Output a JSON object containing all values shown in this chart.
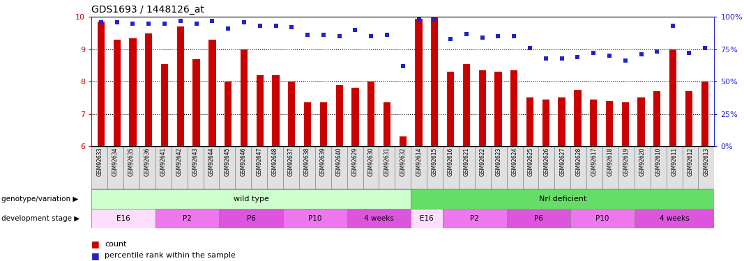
{
  "title": "GDS1693 / 1448126_at",
  "samples": [
    "GSM92633",
    "GSM92634",
    "GSM92635",
    "GSM92636",
    "GSM92641",
    "GSM92642",
    "GSM92643",
    "GSM92644",
    "GSM92645",
    "GSM92646",
    "GSM92647",
    "GSM92648",
    "GSM92637",
    "GSM92638",
    "GSM92639",
    "GSM92640",
    "GSM92629",
    "GSM92630",
    "GSM92631",
    "GSM92632",
    "GSM92614",
    "GSM92615",
    "GSM92616",
    "GSM92621",
    "GSM92622",
    "GSM92623",
    "GSM92624",
    "GSM92625",
    "GSM92626",
    "GSM92627",
    "GSM92628",
    "GSM92617",
    "GSM92618",
    "GSM92619",
    "GSM92620",
    "GSM92610",
    "GSM92611",
    "GSM92612",
    "GSM92613"
  ],
  "counts": [
    9.85,
    9.3,
    9.35,
    9.5,
    8.55,
    9.7,
    8.7,
    9.3,
    8.0,
    9.0,
    8.2,
    8.2,
    8.0,
    7.35,
    7.35,
    7.9,
    7.8,
    8.0,
    7.35,
    6.3,
    9.95,
    10.05,
    8.3,
    8.55,
    8.35,
    8.3,
    8.35,
    7.5,
    7.45,
    7.5,
    7.75,
    7.45,
    7.4,
    7.35,
    7.5,
    7.7,
    9.0,
    7.7,
    8.0
  ],
  "percentiles": [
    96,
    96,
    95,
    95,
    95,
    97,
    95,
    97,
    91,
    96,
    93,
    93,
    92,
    86,
    86,
    85,
    90,
    85,
    86,
    62,
    98,
    98,
    83,
    87,
    84,
    85,
    85,
    76,
    68,
    68,
    69,
    72,
    70,
    66,
    71,
    73,
    93,
    72,
    76
  ],
  "bar_color": "#cc0000",
  "dot_color": "#2222cc",
  "ylim_left": [
    6,
    10
  ],
  "ylim_right": [
    0,
    100
  ],
  "yticks_left": [
    6,
    7,
    8,
    9,
    10
  ],
  "yticks_right": [
    0,
    25,
    50,
    75,
    100
  ],
  "yticklabels_right": [
    "0%",
    "25%",
    "50%",
    "75%",
    "100%"
  ],
  "genotype_groups": [
    {
      "label": "wild type",
      "start": 0,
      "end": 20,
      "color": "#ccffcc"
    },
    {
      "label": "Nrl deficient",
      "start": 20,
      "end": 39,
      "color": "#66dd66"
    }
  ],
  "stage_groups": [
    {
      "label": "E16",
      "start": 0,
      "end": 4,
      "color": "#ffddff"
    },
    {
      "label": "P2",
      "start": 4,
      "end": 8,
      "color": "#ee77ee"
    },
    {
      "label": "P6",
      "start": 8,
      "end": 12,
      "color": "#dd55dd"
    },
    {
      "label": "P10",
      "start": 12,
      "end": 16,
      "color": "#ee77ee"
    },
    {
      "label": "4 weeks",
      "start": 16,
      "end": 20,
      "color": "#dd55dd"
    },
    {
      "label": "E16",
      "start": 20,
      "end": 22,
      "color": "#ffddff"
    },
    {
      "label": "P2",
      "start": 22,
      "end": 26,
      "color": "#ee77ee"
    },
    {
      "label": "P6",
      "start": 26,
      "end": 30,
      "color": "#dd55dd"
    },
    {
      "label": "P10",
      "start": 30,
      "end": 34,
      "color": "#ee77ee"
    },
    {
      "label": "4 weeks",
      "start": 34,
      "end": 39,
      "color": "#dd55dd"
    }
  ],
  "row_label_genotype": "genotype/variation",
  "row_label_stage": "development stage",
  "legend_count": "count",
  "legend_pct": "percentile rank within the sample",
  "background_color": "#ffffff",
  "tick_color_left": "#cc0000",
  "tick_color_right": "#2222cc",
  "grid_dotted_at": [
    7,
    8,
    9
  ],
  "label_area_bg": "#d8d8d8",
  "label_box_bg": "#e0e0e0"
}
